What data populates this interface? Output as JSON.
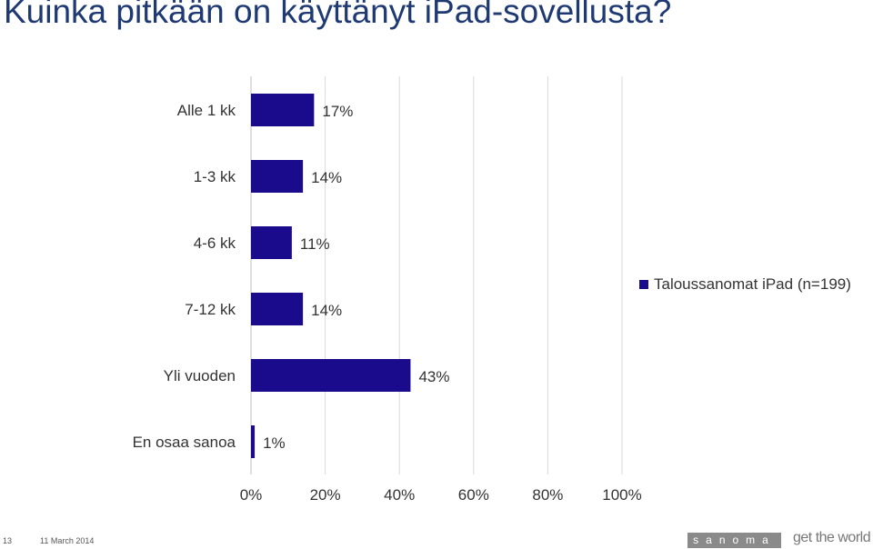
{
  "title": "Kuinka pitkään on käyttänyt iPad-sovellusta?",
  "chart_data": {
    "type": "bar",
    "orientation": "horizontal",
    "categories": [
      "Alle 1 kk",
      "1-3 kk",
      "4-6 kk",
      "7-12 kk",
      "Yli vuoden",
      "En osaa sanoa"
    ],
    "series": [
      {
        "name": "Taloussanomat iPad (n=199)",
        "values": [
          17,
          14,
          11,
          14,
          43,
          1
        ],
        "color": "#1a0a8c"
      }
    ],
    "data_labels": [
      "17%",
      "14%",
      "11%",
      "14%",
      "43%",
      "1%"
    ],
    "x_ticks": [
      "0%",
      "20%",
      "40%",
      "60%",
      "80%",
      "100%"
    ],
    "xlim": [
      0,
      100
    ],
    "grid": true,
    "legend_position": "right"
  },
  "footer": {
    "page_number": "13",
    "date": "11 March 2014",
    "brand": "sanoma",
    "tagline": "get the world"
  },
  "colors": {
    "title": "#1f3a73",
    "bar": "#1a0a8c",
    "grid": "#d9d9d9",
    "axis": "#bfbfbf",
    "logo_bg": "#8a8a8a"
  }
}
